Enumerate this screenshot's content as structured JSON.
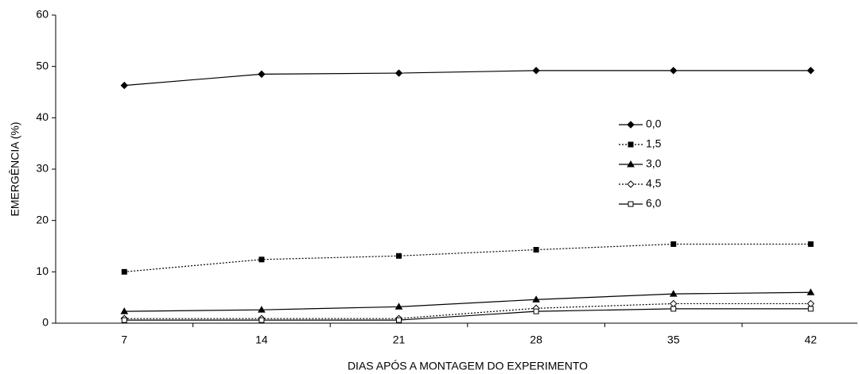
{
  "chart_data": {
    "type": "line",
    "x_label": "DIAS APÓS A MONTAGEM DO EXPERIMENTO",
    "y_label": "EMERGÊNCIA (%)",
    "categories": [
      "7",
      "14",
      "21",
      "28",
      "35",
      "42"
    ],
    "ylim": [
      0,
      60
    ],
    "yticks": [
      0,
      10,
      20,
      30,
      40,
      50,
      60
    ],
    "series": [
      {
        "name": "0,0",
        "color": "#000000",
        "dash": "solid",
        "marker": "diamond-filled",
        "values": [
          46.3,
          48.5,
          48.7,
          49.2,
          49.2,
          49.2
        ]
      },
      {
        "name": "1,5",
        "color": "#000000",
        "dash": "dotted",
        "marker": "square-filled",
        "values": [
          10,
          12.4,
          13.1,
          14.3,
          15.4,
          15.4
        ]
      },
      {
        "name": "3,0",
        "color": "#000000",
        "dash": "solid",
        "marker": "triangle-filled",
        "values": [
          2.3,
          2.6,
          3.2,
          4.6,
          5.7,
          6.0
        ]
      },
      {
        "name": "4,5",
        "color": "#000000",
        "dash": "dotted",
        "marker": "diamond-open",
        "values": [
          0.9,
          0.9,
          0.9,
          2.9,
          3.8,
          3.8
        ]
      },
      {
        "name": "6,0",
        "color": "#000000",
        "dash": "solid",
        "marker": "square-open",
        "values": [
          0.6,
          0.6,
          0.6,
          2.3,
          2.8,
          2.8
        ]
      }
    ]
  }
}
